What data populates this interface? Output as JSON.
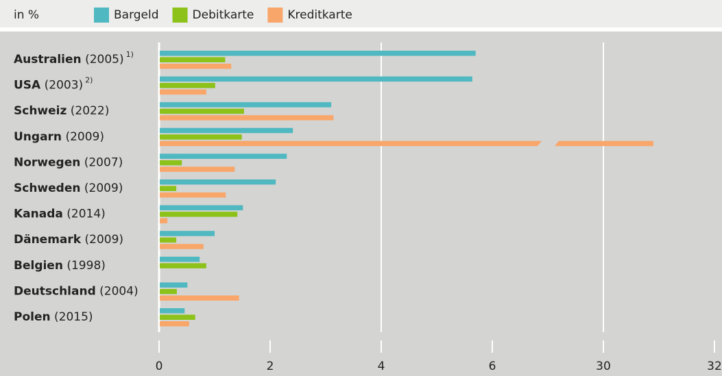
{
  "chart_data": {
    "type": "bar",
    "orientation": "horizontal",
    "unit_label": "in %",
    "categories": [
      {
        "name": "Australien",
        "year": "(2005)",
        "note": "1)"
      },
      {
        "name": "USA",
        "year": "(2003)",
        "note": "2)"
      },
      {
        "name": "Schweiz",
        "year": "(2022)"
      },
      {
        "name": "Ungarn",
        "year": "(2009)"
      },
      {
        "name": "Norwegen",
        "year": "(2007)"
      },
      {
        "name": "Schweden",
        "year": "(2009)"
      },
      {
        "name": "Kanada",
        "year": "(2014)"
      },
      {
        "name": "Dänemark",
        "year": "(2009)"
      },
      {
        "name": "Belgien",
        "year": "(1998)"
      },
      {
        "name": "Deutschland",
        "year": "(2004)"
      },
      {
        "name": "Polen",
        "year": "(2015)"
      }
    ],
    "series": [
      {
        "name": "Bargeld",
        "color": "#4fb8c1",
        "values": [
          5.7,
          5.64,
          3.1,
          2.41,
          2.3,
          2.1,
          1.51,
          1.0,
          0.73,
          0.51,
          0.46
        ]
      },
      {
        "name": "Debitkarte",
        "color": "#8cc21a",
        "values": [
          1.19,
          1.01,
          1.53,
          1.49,
          0.41,
          0.31,
          1.41,
          0.31,
          0.85,
          0.32,
          0.65
        ]
      },
      {
        "name": "Kreditkarte",
        "color": "#f9a66a",
        "values": [
          1.3,
          0.85,
          3.14,
          30.9,
          1.36,
          1.2,
          0.15,
          0.8,
          null,
          1.44,
          0.54
        ]
      }
    ],
    "xlim": [
      0,
      32
    ],
    "xticks": [
      0,
      2,
      4,
      6,
      30,
      32
    ],
    "axis_break": true,
    "grid": true
  }
}
